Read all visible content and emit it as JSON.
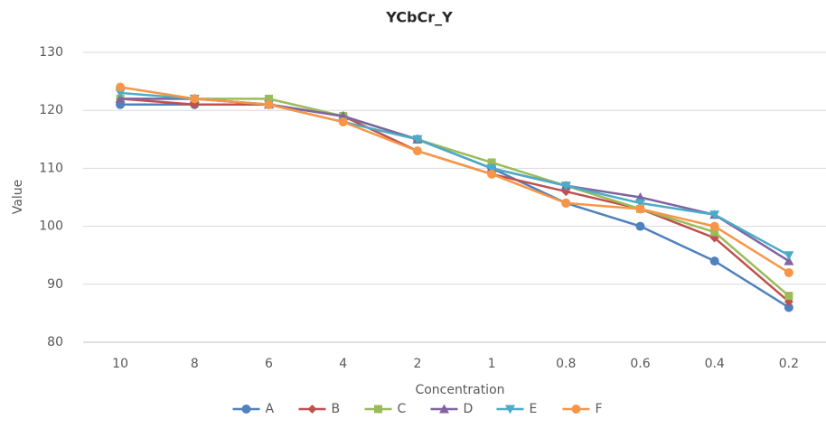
{
  "chart_data": {
    "type": "line",
    "title": "YCbCr_Y",
    "xlabel": "Concentration",
    "ylabel": "Value",
    "categories": [
      "10",
      "8",
      "6",
      "4",
      "2",
      "1",
      "0.8",
      "0.6",
      "0.4",
      "0.2"
    ],
    "series": [
      {
        "name": "A",
        "color": "#4f81bd",
        "marker": "circle",
        "values": [
          121,
          121,
          121,
          119,
          115,
          110,
          104,
          100,
          94,
          86
        ]
      },
      {
        "name": "B",
        "color": "#c0504d",
        "marker": "diamond",
        "values": [
          122,
          121,
          121,
          119,
          113,
          109,
          106,
          103,
          98,
          87
        ]
      },
      {
        "name": "C",
        "color": "#9bbb59",
        "marker": "square",
        "values": [
          122,
          122,
          122,
          119,
          115,
          111,
          107,
          103,
          99,
          88
        ]
      },
      {
        "name": "D",
        "color": "#8064a2",
        "marker": "triangle",
        "values": [
          122,
          122,
          121,
          119,
          115,
          110,
          107,
          105,
          102,
          94
        ]
      },
      {
        "name": "E",
        "color": "#4bacc6",
        "marker": "triangle-down",
        "values": [
          123,
          122,
          121,
          118,
          115,
          110,
          107,
          104,
          102,
          95
        ]
      },
      {
        "name": "F",
        "color": "#f79646",
        "marker": "circle",
        "values": [
          124,
          122,
          121,
          118,
          113,
          109,
          104,
          103,
          100,
          92
        ]
      }
    ],
    "ylim": [
      80,
      130
    ],
    "yticks": [
      80,
      90,
      100,
      110,
      120,
      130
    ],
    "grid": true,
    "legend": "bottom"
  }
}
